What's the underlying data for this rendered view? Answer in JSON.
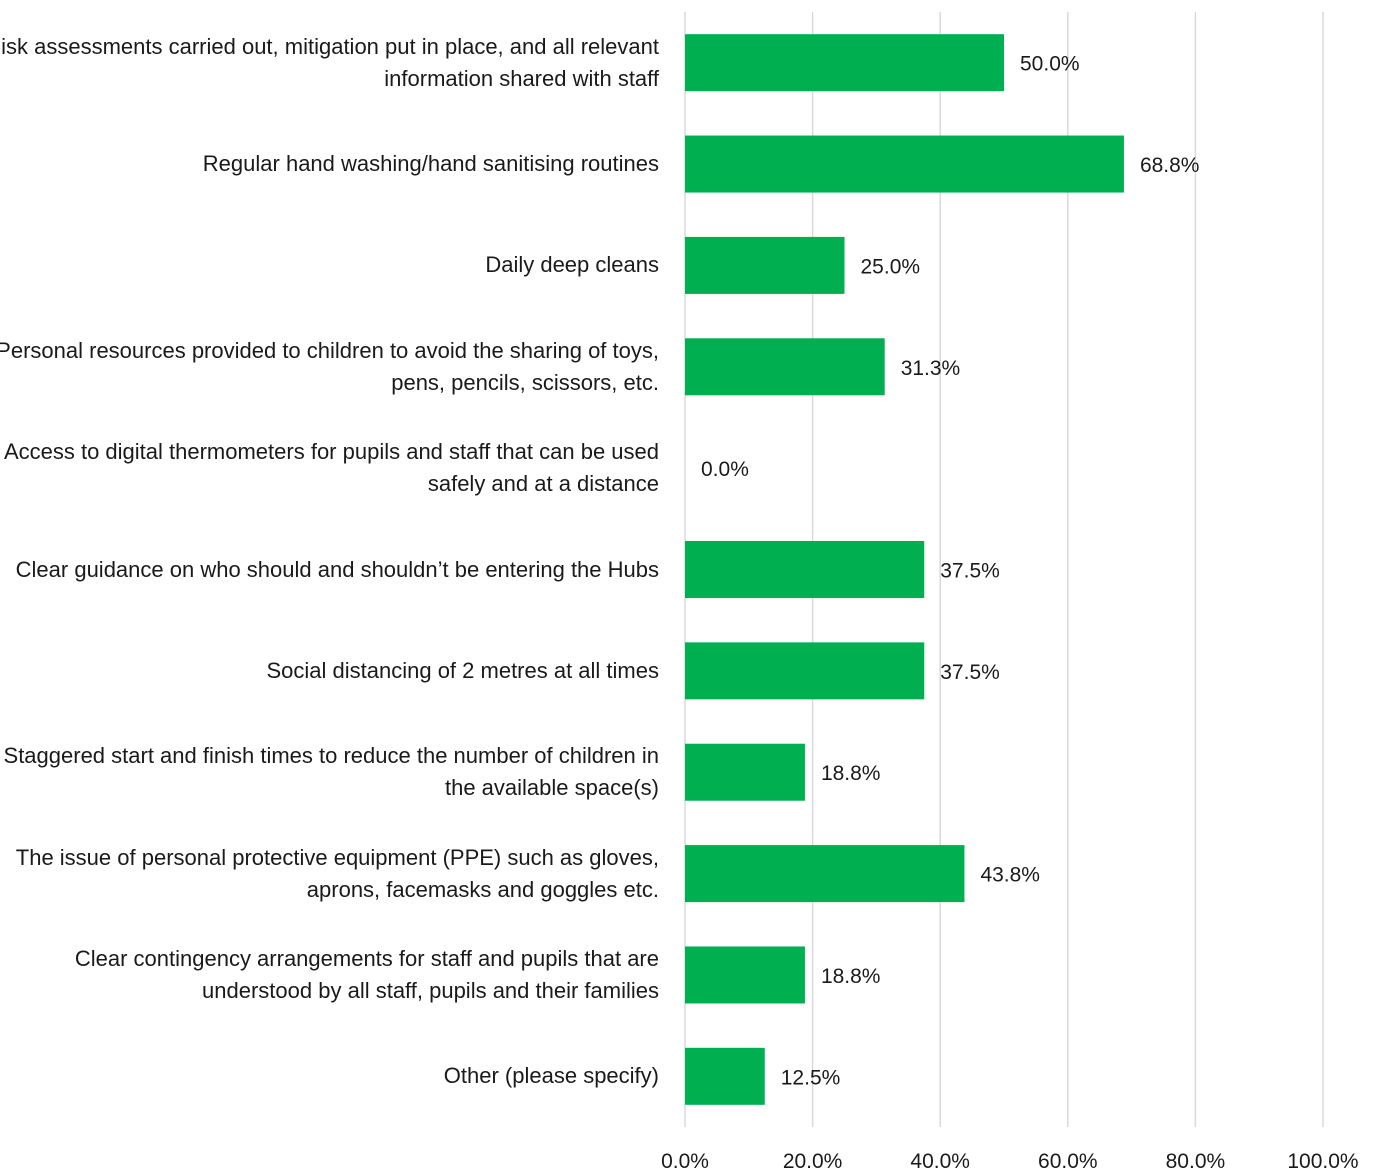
{
  "chart_data": {
    "type": "bar",
    "orientation": "horizontal",
    "categories": [
      "Risk assessments carried out, mitigation put in place, and all relevant information shared with staff",
      "Regular hand washing/hand sanitising routines",
      "Daily deep cleans",
      "Personal resources provided to children to avoid the sharing of toys, pens, pencils, scissors, etc.",
      "Access to digital thermometers for pupils and staff that can be used safely and at a distance",
      "Clear guidance on who should and shouldn’t be entering the Hubs",
      "Social distancing of 2 metres at all times",
      "Staggered start and finish times to reduce the number of children in the available space(s)",
      "The issue of personal protective equipment (PPE) such as gloves, aprons, facemasks and goggles etc.",
      "Clear contingency arrangements for staff and pupils that are understood by all staff, pupils and their families",
      "Other (please specify)"
    ],
    "values": [
      50.0,
      68.8,
      25.0,
      31.3,
      0.0,
      37.5,
      37.5,
      18.8,
      43.8,
      18.8,
      12.5
    ],
    "value_labels": [
      "50.0%",
      "68.8%",
      "25.0%",
      "31.3%",
      "0.0%",
      "37.5%",
      "37.5%",
      "18.8%",
      "43.8%",
      "18.8%",
      "12.5%"
    ],
    "xlim": [
      0,
      100
    ],
    "x_ticks": [
      "0.0%",
      "20.0%",
      "40.0%",
      "60.0%",
      "80.0%",
      "100.0%"
    ],
    "title": "",
    "xlabel": "",
    "ylabel": "",
    "grid": "vertical",
    "legend": "none",
    "bar_color": "#00b050",
    "grid_color": "#d9d9d9"
  }
}
